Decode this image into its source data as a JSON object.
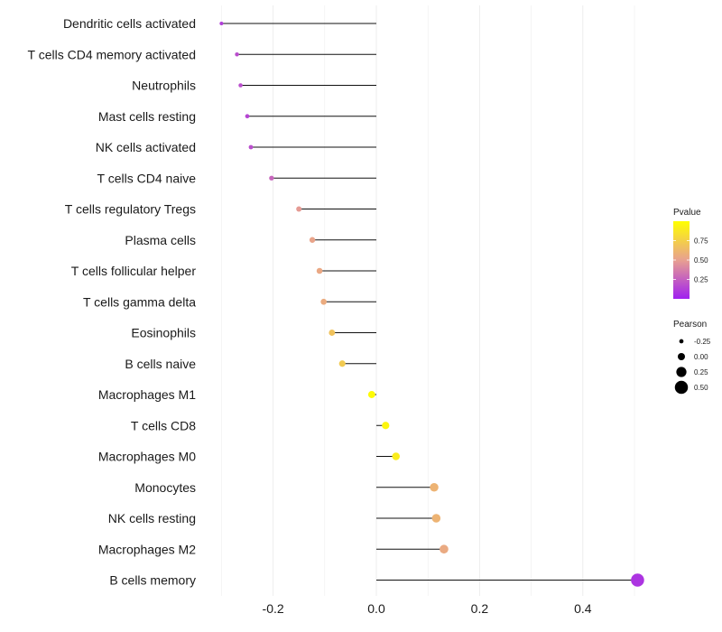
{
  "chart_data": {
    "type": "lollipop",
    "title": "",
    "xlabel": "",
    "ylabel": "",
    "xlim": [
      -0.32,
      0.52
    ],
    "x_ticks": [
      -0.2,
      0.0,
      0.2,
      0.4
    ],
    "x_tick_labels": [
      "-0.2",
      "0.0",
      "0.2",
      "0.4"
    ],
    "grid": true,
    "categories": [
      "Dendritic cells activated",
      "T cells CD4 memory activated",
      "Neutrophils",
      "Mast cells resting",
      "NK cells activated",
      "T cells CD4 naive",
      "T cells regulatory  Tregs ",
      "Plasma cells",
      "T cells follicular helper",
      "T cells gamma delta",
      "Eosinophils",
      "B cells naive",
      "Macrophages M1",
      "T cells CD8",
      "Macrophages M0",
      "Monocytes",
      "NK cells resting",
      "Macrophages M2",
      "B cells memory"
    ],
    "pearson": [
      -0.3,
      -0.27,
      -0.263,
      -0.25,
      -0.243,
      -0.203,
      -0.15,
      -0.124,
      -0.11,
      -0.102,
      -0.086,
      -0.066,
      -0.009,
      0.018,
      0.038,
      0.112,
      0.116,
      0.131,
      0.506
    ],
    "pvalue": [
      0.12,
      0.18,
      0.18,
      0.15,
      0.18,
      0.27,
      0.48,
      0.52,
      0.54,
      0.56,
      0.68,
      0.72,
      0.98,
      0.95,
      0.9,
      0.6,
      0.6,
      0.55,
      0.08
    ],
    "legend": {
      "color_title": "Pvalue",
      "color_ticks": [
        0.25,
        0.5,
        0.75
      ],
      "color_tick_labels": [
        "0.25",
        "0.50",
        "0.75"
      ],
      "color_range": [
        0.0,
        1.0
      ],
      "color_low": "#a020f0",
      "color_mid": "#e8a090",
      "color_high": "#ffff00",
      "size_title": "Pearson",
      "size_values": [
        -0.25,
        0.0,
        0.25,
        0.5
      ],
      "size_labels": [
        "-0.25",
        "0.00",
        "0.25",
        "0.50"
      ],
      "position": "right"
    }
  }
}
